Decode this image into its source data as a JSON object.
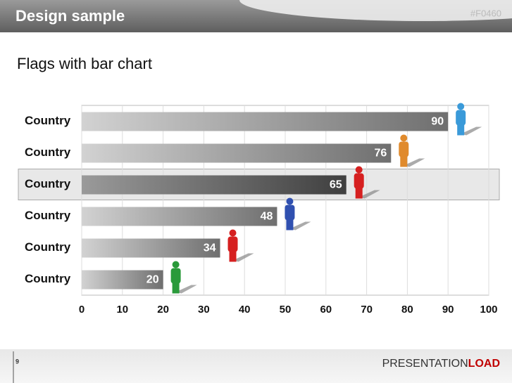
{
  "header": {
    "title": "Design sample",
    "code": "#F0460"
  },
  "chart_data": {
    "type": "bar",
    "orientation": "horizontal",
    "title": "Flags with bar chart",
    "categories": [
      "Country",
      "Country",
      "Country",
      "Country",
      "Country",
      "Country"
    ],
    "values": [
      90,
      76,
      65,
      48,
      34,
      20
    ],
    "color": "#7a7a7a",
    "highlight": 2,
    "xlim": [
      0,
      100
    ],
    "xticks": [
      0,
      10,
      20,
      30,
      40,
      50,
      60,
      70,
      80,
      90,
      100
    ],
    "grid": true
  },
  "footer": {
    "page": "9",
    "logo": [
      "PRESENTATION",
      "LOAD"
    ]
  }
}
